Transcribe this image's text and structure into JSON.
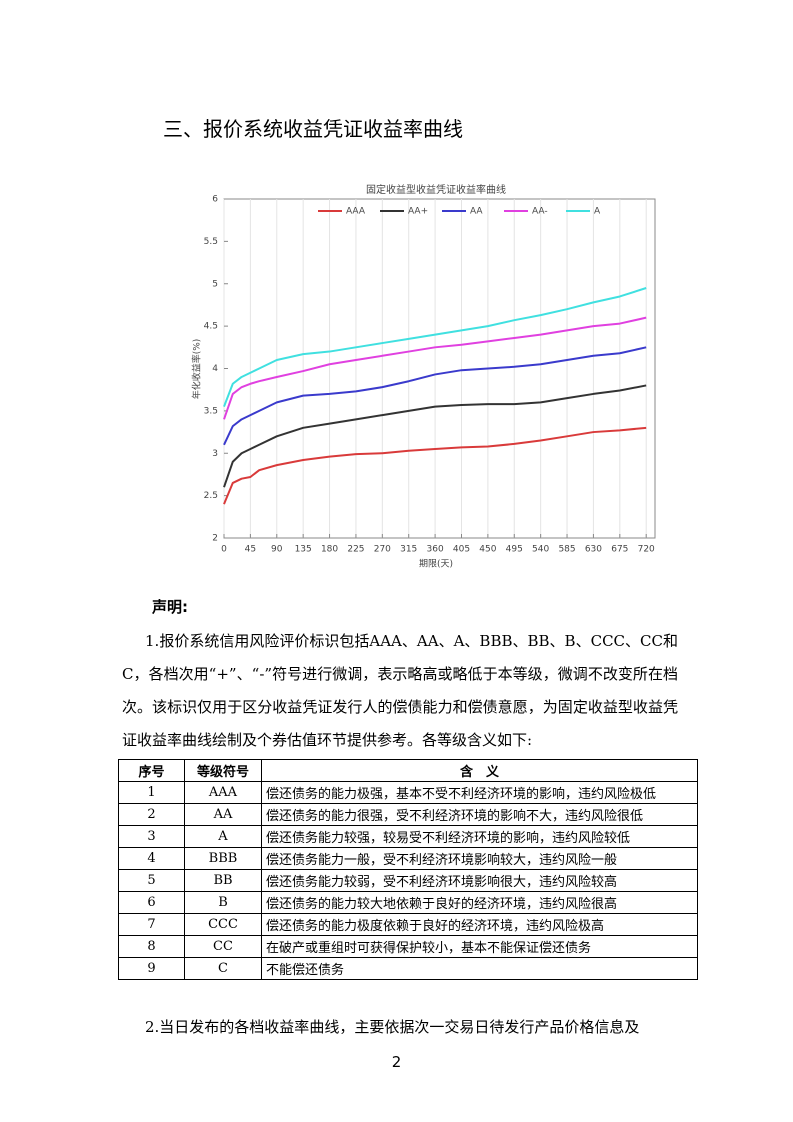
{
  "heading": "三、报价系统收益凭证收益率曲线",
  "chart_data": {
    "type": "line",
    "title": "固定收益型收益凭证收益率曲线",
    "x_label": "期限(天)",
    "y_label": "年化收益率(%)",
    "x": [
      0,
      15,
      30,
      45,
      60,
      90,
      135,
      180,
      225,
      270,
      315,
      360,
      405,
      450,
      495,
      540,
      585,
      630,
      675,
      720
    ],
    "series": [
      {
        "name": "AAA",
        "color": "#d93a3a",
        "values": [
          2.4,
          2.65,
          2.7,
          2.72,
          2.8,
          2.86,
          2.92,
          2.96,
          2.99,
          3.0,
          3.03,
          3.05,
          3.07,
          3.08,
          3.11,
          3.15,
          3.2,
          3.25,
          3.27,
          3.3
        ]
      },
      {
        "name": "AA+",
        "color": "#333333",
        "values": [
          2.6,
          2.9,
          3.0,
          3.05,
          3.1,
          3.2,
          3.3,
          3.35,
          3.4,
          3.45,
          3.5,
          3.55,
          3.57,
          3.58,
          3.58,
          3.6,
          3.65,
          3.7,
          3.74,
          3.8
        ]
      },
      {
        "name": "AA",
        "color": "#3a3acc",
        "values": [
          3.1,
          3.32,
          3.4,
          3.45,
          3.5,
          3.6,
          3.68,
          3.7,
          3.73,
          3.78,
          3.85,
          3.93,
          3.98,
          4.0,
          4.02,
          4.05,
          4.1,
          4.15,
          4.18,
          4.25
        ]
      },
      {
        "name": "AA-",
        "color": "#e040e0",
        "values": [
          3.4,
          3.7,
          3.78,
          3.82,
          3.85,
          3.9,
          3.97,
          4.05,
          4.1,
          4.15,
          4.2,
          4.25,
          4.28,
          4.32,
          4.36,
          4.4,
          4.45,
          4.5,
          4.53,
          4.6
        ]
      },
      {
        "name": "A",
        "color": "#40e0e0",
        "values": [
          3.55,
          3.82,
          3.9,
          3.95,
          4.0,
          4.1,
          4.17,
          4.2,
          4.25,
          4.3,
          4.35,
          4.4,
          4.45,
          4.5,
          4.57,
          4.63,
          4.7,
          4.78,
          4.85,
          4.95
        ]
      }
    ],
    "xlim": [
      0,
      735
    ],
    "ylim": [
      2,
      6
    ],
    "xticks": [
      0,
      45,
      90,
      135,
      180,
      225,
      270,
      315,
      360,
      405,
      450,
      495,
      540,
      585,
      630,
      675,
      720
    ],
    "yticks": [
      2,
      2.5,
      3,
      3.5,
      4,
      4.5,
      5,
      5.5,
      6
    ],
    "grid": "x",
    "legend": "top"
  },
  "declaration": {
    "title": "声明:",
    "paragraphs": [
      "1.报价系统信用风险评价标识包括AAA、AA、A、BBB、BB、B、CCC、CC和C，各档次用“+”、“-”符号进行微调，表示略高或略低于本等级，微调不改变所在档次。该标识仅用于区分收益凭证发行人的偿债能力和偿债意愿，为固定收益型收益凭证收益率曲线绘制及个券估值环节提供参考。各等级含义如下:"
    ]
  },
  "table": {
    "header": [
      "序号",
      "等级符号",
      "含　义"
    ],
    "rows": [
      [
        "1",
        "AAA",
        "偿还债务的能力极强，基本不受不利经济环境的影响，违约风险极低"
      ],
      [
        "2",
        "AA",
        "偿还债务的能力很强，受不利经济环境的影响不大，违约风险很低"
      ],
      [
        "3",
        "A",
        "偿还债务能力较强，较易受不利经济环境的影响，违约风险较低"
      ],
      [
        "4",
        "BBB",
        "偿还债务能力一般，受不利经济环境影响较大，违约风险一般"
      ],
      [
        "5",
        "BB",
        "偿还债务能力较弱，受不利经济环境影响很大，违约风险较高"
      ],
      [
        "6",
        "B",
        "偿还债务的能力较大地依赖于良好的经济环境，违约风险很高"
      ],
      [
        "7",
        "CCC",
        "偿还债务的能力极度依赖于良好的经济环境，违约风险极高"
      ],
      [
        "8",
        "CC",
        "在破产或重组时可获得保护较小，基本不能保证偿还债务"
      ],
      [
        "9",
        "C",
        "不能偿还债务"
      ]
    ]
  },
  "closing": "2.当日发布的各档收益率曲线，主要依据次一交易日待发行产品价格信息及",
  "page_number": "2"
}
